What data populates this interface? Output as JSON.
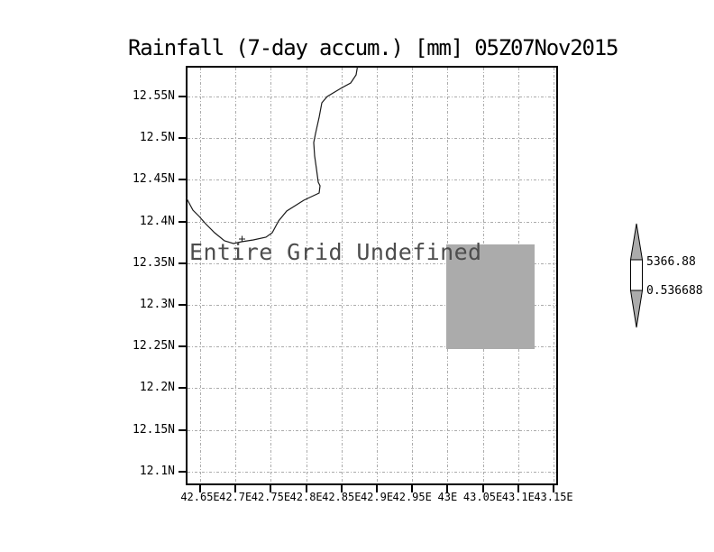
{
  "title": "Rainfall (7-day accum.) [mm] 05Z07Nov2015",
  "map": {
    "undefined_label": "Entire Grid Undefined",
    "region_fill_color": "#ababab"
  },
  "axes": {
    "y_labels": [
      "12.55N",
      "12.5N",
      "12.45N",
      "12.4N",
      "12.35N",
      "12.3N",
      "12.25N",
      "12.2N",
      "12.15N",
      "12.1N"
    ],
    "x_labels": [
      "42.65E",
      "42.7E",
      "42.75E",
      "42.8E",
      "42.85E",
      "42.9E",
      "42.95E",
      "43E",
      "43.05E",
      "43.1E",
      "43.15E"
    ]
  },
  "colorbar": {
    "max_value": "5366.88",
    "min_value": "0.536688",
    "fill_color": "#ababab"
  },
  "chart_data": {
    "type": "heatmap",
    "title": "Rainfall (7-day accum.) [mm] 05Z07Nov2015",
    "x_tick_labels": [
      "42.65E",
      "42.7E",
      "42.75E",
      "42.8E",
      "42.85E",
      "42.9E",
      "42.95E",
      "43E",
      "43.05E",
      "43.1E",
      "43.15E"
    ],
    "y_tick_labels": [
      "12.55N",
      "12.5N",
      "12.45N",
      "12.4N",
      "12.35N",
      "12.3N",
      "12.25N",
      "12.2N",
      "12.15N",
      "12.1N"
    ],
    "colorbar_min": 0.536688,
    "colorbar_max": 5366.88,
    "grid": "dotted",
    "annotations": [
      "Entire Grid Undefined"
    ],
    "values": []
  }
}
